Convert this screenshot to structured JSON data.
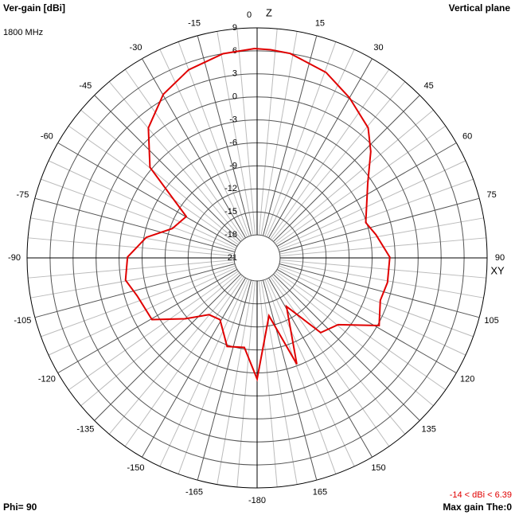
{
  "chart_data": {
    "type": "polar",
    "title": "Ver-gain [dBi]",
    "subtitle": "1800 MHz",
    "plane": "Vertical plane",
    "top_axis_label": "Z",
    "side_axis_label": "XY",
    "phi_label": "Phi= 90",
    "range_label": "-14 < dBi < 6.39",
    "max_gain_label": "Max gain The:0",
    "rlim": [
      -21,
      9
    ],
    "rticks": [
      -21,
      -18,
      -15,
      -12,
      -9,
      -6,
      -3,
      0,
      3,
      6,
      9
    ],
    "angle_ticks": [
      0,
      15,
      30,
      45,
      60,
      75,
      90,
      105,
      120,
      135,
      150,
      165,
      -180,
      -165,
      -150,
      -135,
      -120,
      -105,
      -90,
      -75,
      -60,
      -45,
      -30,
      -15
    ],
    "x": [
      -0.7,
      3.7,
      9.2,
      20.4,
      30,
      40.5,
      46.9,
      56,
      72,
      79,
      89.7,
      100.7,
      109,
      119,
      129.5,
      139.6,
      148.8,
      159.5,
      168.4,
      180,
      -171.9,
      -161.3,
      -149,
      -139.7,
      -130.2,
      -120.4,
      -107.6,
      -99.6,
      -89.6,
      -79.5,
      -70.9,
      -59.7,
      -49.8,
      -39.9,
      -29.8,
      -20,
      -9.5
    ],
    "series": [
      {
        "color": "#e00000",
        "values": [
          6.3,
          6.2,
          6.0,
          4.8,
          3.1,
          1.3,
          -0.7,
          -3.6,
          -6.1,
          -5.2,
          -3.7,
          -3.7,
          -4.0,
          -2.8,
          -7.3,
          -8.2,
          -13.6,
          -6.2,
          -13.3,
          -5.2,
          -9.2,
          -8.8,
          -11.6,
          -11.3,
          -8.7,
          -5.1,
          -4.6,
          -3.6,
          -4.1,
          -6.3,
          -9.3,
          -10.3,
          -2.7,
          1.1,
          3.6,
          5.1,
          6.0
        ]
      }
    ]
  }
}
